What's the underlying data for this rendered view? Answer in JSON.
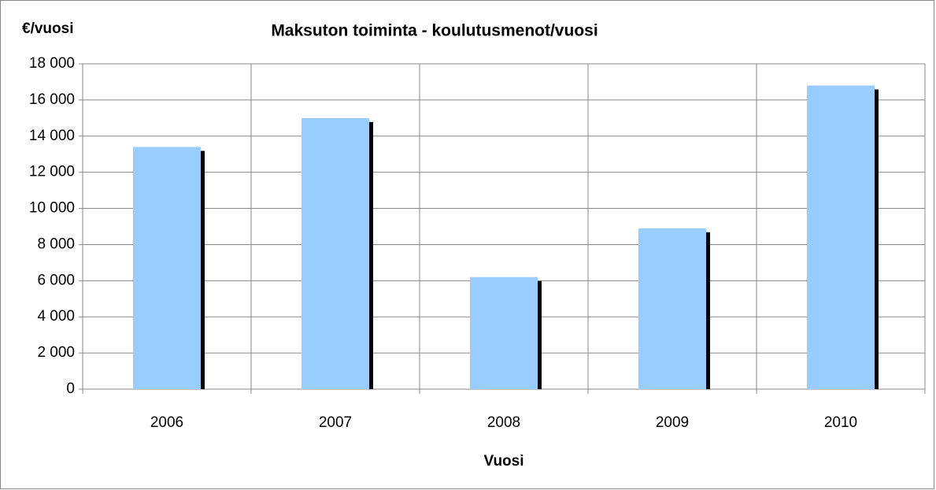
{
  "chart_data": {
    "type": "bar",
    "title": "Maksuton toiminta - koulutusmenot/vuosi",
    "y_axis_label": "€/vuosi",
    "x_axis_label": "Vuosi",
    "categories": [
      "2006",
      "2007",
      "2008",
      "2009",
      "2010"
    ],
    "values": [
      13400,
      15000,
      6200,
      8900,
      16800
    ],
    "color": "#99ccff",
    "shadow_color": "#000000",
    "ylim": [
      0,
      18000
    ],
    "yticks": [
      0,
      {
        "value": 2000,
        "label": "2 000"
      },
      {
        "value": 4000,
        "label": "4 000"
      },
      {
        "value": 6000,
        "label": "6 000"
      },
      {
        "value": 8000,
        "label": "8 000"
      },
      {
        "value": 10000,
        "label": "10 000"
      },
      {
        "value": 12000,
        "label": "12 000"
      },
      {
        "value": 14000,
        "label": "14 000"
      },
      {
        "value": 16000,
        "label": "16 000"
      },
      {
        "value": 18000,
        "label": "18 000"
      }
    ],
    "grid": true
  }
}
